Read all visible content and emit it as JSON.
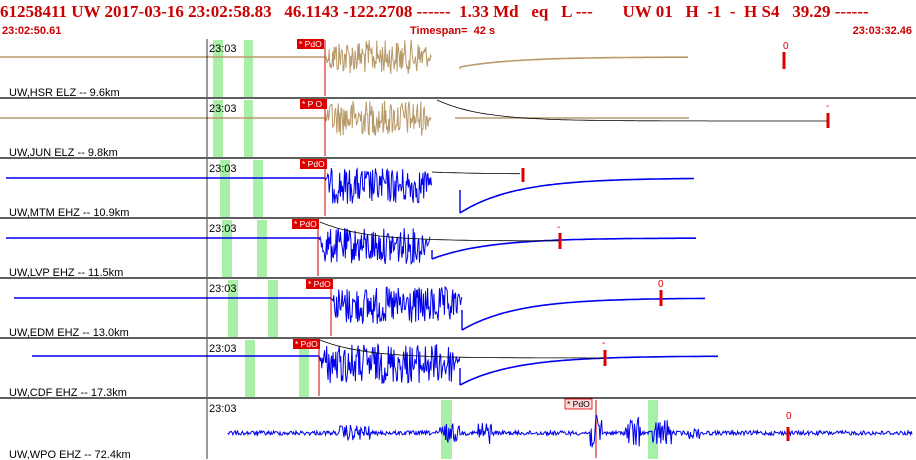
{
  "header": {
    "title": "61258411 UW 2017-03-16 23:02:58.83   46.1143 -122.2708 ------  1.33 Md   eq   L ---       UW 01   H  -1  -  H S4   39.29 ------",
    "start_time": "23:02:50.61",
    "timespan": "Timespan=  42 s",
    "end_time": "23:03:32.46"
  },
  "colors": {
    "header_text": "#cc0000",
    "short_period_trace": "#b89a6a",
    "broadband_trace": "#0000ee",
    "pick_box": "#dd0000",
    "time_window": "#a8f0a8",
    "coda_curve": "#000000"
  },
  "traces": [
    {
      "label": "UW,HSR ELZ --  9.6km",
      "time_tick": "23:03",
      "pick_label": "* PdO",
      "marker_label": "0",
      "color_key": "short_period_trace"
    },
    {
      "label": "UW,JUN ELZ --  9.8km",
      "time_tick": "23:03",
      "pick_label": "* P O",
      "marker_label": "-",
      "color_key": "short_period_trace"
    },
    {
      "label": "UW,MTM EHZ -- 10.9km",
      "time_tick": "23:03",
      "pick_label": "* PdO",
      "marker_label": "",
      "color_key": "broadband_trace"
    },
    {
      "label": "UW,LVP EHZ -- 11.5km",
      "time_tick": "23:03",
      "pick_label": "* PdO",
      "marker_label": "-",
      "color_key": "broadband_trace"
    },
    {
      "label": "UW,EDM EHZ -- 13.0km",
      "time_tick": "23:03",
      "pick_label": "* PdO",
      "marker_label": "0",
      "color_key": "broadband_trace"
    },
    {
      "label": "UW,CDF EHZ -- 17.3km",
      "time_tick": "23:03",
      "pick_label": "* PdO",
      "marker_label": "-",
      "color_key": "broadband_trace"
    },
    {
      "label": "UW,WPO EHZ -- 72.4km",
      "time_tick": "23:03",
      "pick_label": "* PdO",
      "marker_label": "0",
      "color_key": "broadband_trace"
    }
  ]
}
